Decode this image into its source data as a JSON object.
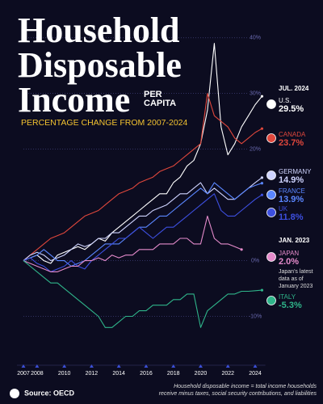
{
  "chart_data": {
    "type": "line",
    "title": [
      "Household",
      "Disposable",
      "Income"
    ],
    "title_suffix": "PER CAPITA",
    "subtitle": "PERCENTAGE CHANGE FROM 2007-2024",
    "annotations": [
      "JUL. 2024",
      "JAN. 2023",
      "Japan's latest data as of January 2023"
    ],
    "source": "Source: OECD",
    "footnote": "Household disposable income = total income households receive minus taxes, social security contributions, and liabilities",
    "x": [
      2007,
      2007.5,
      2008,
      2008.5,
      2009,
      2009.5,
      2010,
      2010.5,
      2011,
      2011.5,
      2012,
      2012.5,
      2013,
      2013.5,
      2014,
      2014.5,
      2015,
      2015.5,
      2016,
      2016.5,
      2017,
      2017.5,
      2018,
      2018.5,
      2019,
      2019.5,
      2020,
      2020.5,
      2021,
      2021.5,
      2022,
      2022.5,
      2023,
      2023.5,
      2024,
      2024.5
    ],
    "xlim": [
      2007,
      2024.75
    ],
    "xticks": [
      2007,
      2008,
      2010,
      2012,
      2014,
      2016,
      2018,
      2020,
      2022,
      2024
    ],
    "ylim": [
      -15,
      42
    ],
    "yticks": [
      {
        "value": -10,
        "label": "-10%"
      },
      {
        "value": 0,
        "label": "0%"
      },
      {
        "value": 20,
        "label": "20%"
      },
      {
        "value": 30,
        "label": "30%"
      },
      {
        "value": 40,
        "label": "40%"
      }
    ],
    "grid": true,
    "series": [
      {
        "name": "U.S.",
        "color": "#ffffff",
        "values": [
          0,
          0.5,
          1,
          0,
          -0.5,
          1,
          1.5,
          2,
          2.5,
          2,
          3,
          4,
          3.5,
          5,
          6,
          7,
          8,
          9,
          10,
          11,
          12,
          12,
          14,
          15,
          17,
          18,
          21,
          27,
          39,
          24,
          19,
          21,
          24,
          26,
          28,
          29.5
        ],
        "value_labels": [
          null,
          null,
          null,
          null,
          null,
          null,
          null,
          null,
          null,
          null,
          null,
          null,
          null,
          null,
          null,
          null,
          null,
          null,
          null,
          null,
          null,
          null,
          null,
          null,
          null,
          null,
          null,
          null,
          null,
          null,
          null,
          null,
          null,
          null,
          null,
          "29.5%"
        ]
      },
      {
        "name": "CANADA",
        "color": "#e0473c",
        "values": [
          0,
          1,
          2,
          3,
          4,
          4.5,
          5,
          6,
          7,
          8,
          8.5,
          9,
          10,
          11,
          12,
          12.5,
          13,
          14,
          14.5,
          15,
          16,
          16.5,
          17,
          18,
          19,
          20,
          21,
          30,
          26,
          25,
          24,
          22,
          21,
          22,
          23,
          23.7
        ],
        "value_labels": [
          null,
          null,
          null,
          null,
          null,
          null,
          null,
          null,
          null,
          null,
          null,
          null,
          null,
          null,
          null,
          null,
          null,
          null,
          null,
          null,
          null,
          null,
          null,
          null,
          null,
          null,
          null,
          null,
          null,
          null,
          null,
          null,
          null,
          null,
          null,
          "23.7%"
        ]
      },
      {
        "name": "GERMANY",
        "color": "#cfd4ff",
        "values": [
          0,
          1,
          1.5,
          1,
          0,
          0.5,
          1,
          2,
          3,
          2.5,
          3,
          4,
          4,
          5,
          5,
          6,
          7,
          8,
          8,
          9,
          9.5,
          10,
          11,
          12,
          12,
          13,
          14,
          12,
          13,
          12,
          11,
          11,
          12,
          13,
          14,
          14.9
        ],
        "value_labels": [
          null,
          null,
          null,
          null,
          null,
          null,
          null,
          null,
          null,
          null,
          null,
          null,
          null,
          null,
          null,
          null,
          null,
          null,
          null,
          null,
          null,
          null,
          null,
          null,
          null,
          null,
          null,
          null,
          null,
          null,
          null,
          null,
          null,
          null,
          null,
          "14.9%"
        ]
      },
      {
        "name": "FRANCE",
        "color": "#5a86ff",
        "values": [
          0,
          0.5,
          1,
          2,
          1,
          0,
          0,
          -1,
          -0.5,
          0,
          1,
          2,
          3,
          3,
          3,
          4,
          5,
          6,
          6,
          7,
          8,
          8,
          9,
          10,
          11,
          12,
          13,
          12,
          14,
          13,
          12,
          11,
          12,
          13,
          13.5,
          13.9
        ],
        "value_labels": [
          null,
          null,
          null,
          null,
          null,
          null,
          null,
          null,
          null,
          null,
          null,
          null,
          null,
          null,
          null,
          null,
          null,
          null,
          null,
          null,
          null,
          null,
          null,
          null,
          null,
          null,
          null,
          null,
          null,
          null,
          null,
          null,
          null,
          null,
          null,
          "13.9%"
        ]
      },
      {
        "name": "UK",
        "color": "#3d4fe0",
        "values": [
          0,
          0.5,
          -0.5,
          -1,
          -2,
          -1.5,
          -1,
          0,
          -1,
          -1.5,
          0,
          1,
          2,
          3,
          4,
          4,
          5,
          6,
          5,
          4,
          5,
          6,
          6,
          7,
          8,
          9,
          10,
          11,
          12,
          9,
          8,
          8,
          9,
          10,
          11,
          11.8
        ],
        "value_labels": [
          null,
          null,
          null,
          null,
          null,
          null,
          null,
          null,
          null,
          null,
          null,
          null,
          null,
          null,
          null,
          null,
          null,
          null,
          null,
          null,
          null,
          null,
          null,
          null,
          null,
          null,
          null,
          null,
          null,
          null,
          null,
          null,
          null,
          null,
          null,
          "11.8%"
        ]
      },
      {
        "name": "JAPAN",
        "color": "#e58bcb",
        "values": [
          0,
          -0.5,
          -1,
          -1.5,
          -2,
          -2,
          -1.5,
          -1,
          -1,
          0,
          0,
          0.5,
          0,
          1,
          0.5,
          1,
          1,
          2,
          2,
          2,
          3,
          3,
          3,
          4,
          4,
          3,
          3,
          8,
          4,
          3,
          3,
          2.5,
          2,
          null,
          null,
          null
        ],
        "value_labels": [
          null,
          null,
          null,
          null,
          null,
          null,
          null,
          null,
          null,
          null,
          null,
          null,
          null,
          null,
          null,
          null,
          null,
          null,
          null,
          null,
          null,
          null,
          null,
          null,
          null,
          null,
          null,
          null,
          null,
          null,
          null,
          null,
          "2.0%",
          null,
          null,
          null
        ]
      },
      {
        "name": "ITALY",
        "color": "#2fb58a",
        "values": [
          0,
          -1,
          -2,
          -3,
          -4,
          -4,
          -5,
          -6,
          -7,
          -8,
          -9,
          -10,
          -12,
          -12,
          -11,
          -10,
          -10,
          -9,
          -9,
          -8,
          -8,
          -8,
          -7,
          -7,
          -6,
          -6,
          -12,
          -9,
          -8,
          -7,
          -6,
          -6,
          -5.5,
          -5.5,
          -5.4,
          -5.3
        ],
        "value_labels": [
          null,
          null,
          null,
          null,
          null,
          null,
          null,
          null,
          null,
          null,
          null,
          null,
          null,
          null,
          null,
          null,
          null,
          null,
          null,
          null,
          null,
          null,
          null,
          null,
          null,
          null,
          null,
          null,
          null,
          null,
          null,
          null,
          null,
          null,
          null,
          "-5.3%"
        ]
      }
    ]
  }
}
